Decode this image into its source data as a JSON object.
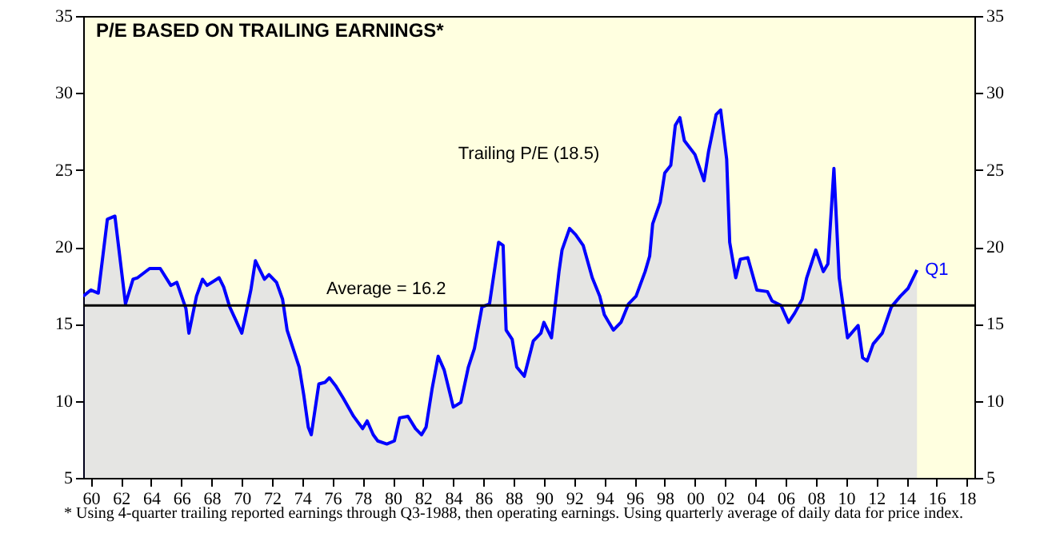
{
  "chart_data": {
    "type": "area",
    "title": "P/E BASED ON TRAILING EARNINGS*",
    "x": [
      1959.5,
      1960.0,
      1960.5,
      1961.1,
      1961.6,
      1962.3,
      1962.8,
      1963.1,
      1963.9,
      1964.6,
      1965.3,
      1965.7,
      1966.3,
      1966.5,
      1967.0,
      1967.4,
      1967.7,
      1968.5,
      1968.8,
      1969.2,
      1970.0,
      1970.6,
      1970.9,
      1971.5,
      1971.8,
      1972.3,
      1972.7,
      1973.0,
      1973.8,
      1974.1,
      1974.4,
      1974.6,
      1975.1,
      1975.5,
      1975.8,
      1976.2,
      1976.7,
      1977.4,
      1978.0,
      1978.3,
      1978.7,
      1979.0,
      1979.6,
      1980.1,
      1980.45,
      1981.0,
      1981.5,
      1981.9,
      1982.2,
      1982.6,
      1983.0,
      1983.4,
      1984.0,
      1984.5,
      1985.0,
      1985.4,
      1985.9,
      1986.4,
      1987.0,
      1987.3,
      1987.5,
      1987.9,
      1988.2,
      1988.7,
      1989.3,
      1989.8,
      1990.0,
      1990.5,
      1991.0,
      1991.2,
      1991.7,
      1992.1,
      1992.6,
      1993.2,
      1993.7,
      1994.0,
      1994.6,
      1995.1,
      1995.6,
      1996.1,
      1996.7,
      1997.0,
      1997.2,
      1997.7,
      1998.0,
      1998.4,
      1998.7,
      1999.0,
      1999.3,
      2000.0,
      2000.6,
      2000.9,
      2001.4,
      2001.7,
      2002.1,
      2002.3,
      2002.7,
      2003.0,
      2003.5,
      2004.1,
      2004.8,
      2005.1,
      2005.7,
      2006.2,
      2006.6,
      2007.1,
      2007.4,
      2008.0,
      2008.5,
      2008.8,
      2009.2,
      2009.55,
      2010.1,
      2010.8,
      2011.1,
      2011.4,
      2011.8,
      2012.4,
      2013.0,
      2013.6,
      2014.1,
      2014.7
    ],
    "series": [
      {
        "color": "#0000ff",
        "values": [
          16.8,
          17.2,
          17.0,
          21.8,
          22.0,
          16.3,
          17.9,
          18.0,
          18.6,
          18.6,
          17.5,
          17.7,
          16.0,
          14.4,
          16.8,
          17.9,
          17.5,
          18.0,
          17.4,
          16.1,
          14.4,
          17.2,
          19.1,
          17.9,
          18.2,
          17.7,
          16.6,
          14.6,
          12.2,
          10.4,
          8.3,
          7.8,
          11.1,
          11.2,
          11.5,
          11.0,
          10.2,
          9.0,
          8.2,
          8.7,
          7.8,
          7.4,
          7.2,
          7.4,
          8.9,
          9.0,
          8.2,
          7.8,
          8.3,
          10.8,
          12.9,
          12.0,
          9.6,
          9.9,
          12.2,
          13.4,
          16.1,
          16.3,
          20.3,
          20.1,
          14.6,
          14.0,
          12.2,
          11.6,
          13.9,
          14.4,
          15.1,
          14.1,
          18.4,
          19.8,
          21.2,
          20.8,
          20.1,
          18.0,
          16.8,
          15.6,
          14.6,
          15.1,
          16.3,
          16.8,
          18.4,
          19.4,
          21.5,
          22.9,
          24.8,
          25.3,
          27.9,
          28.4,
          26.9,
          26.0,
          24.3,
          26.2,
          28.6,
          28.9,
          25.7,
          20.3,
          18.0,
          19.2,
          19.3,
          17.2,
          17.1,
          16.5,
          16.2,
          15.1,
          15.7,
          16.6,
          18.0,
          19.8,
          18.4,
          18.9,
          25.1,
          18.0,
          14.1,
          14.9,
          12.8,
          12.6,
          13.7,
          14.4,
          16.1,
          16.8,
          17.3,
          18.5
        ]
      }
    ],
    "xlim": [
      1959.5,
      2018.5
    ],
    "xticks": [
      {
        "value": 1960,
        "label": "60"
      },
      {
        "value": 1962,
        "label": "62"
      },
      {
        "value": 1964,
        "label": "64"
      },
      {
        "value": 1966,
        "label": "66"
      },
      {
        "value": 1968,
        "label": "68"
      },
      {
        "value": 1970,
        "label": "70"
      },
      {
        "value": 1972,
        "label": "72"
      },
      {
        "value": 1974,
        "label": "74"
      },
      {
        "value": 1976,
        "label": "76"
      },
      {
        "value": 1978,
        "label": "78"
      },
      {
        "value": 1980,
        "label": "80"
      },
      {
        "value": 1982,
        "label": "82"
      },
      {
        "value": 1984,
        "label": "84"
      },
      {
        "value": 1986,
        "label": "86"
      },
      {
        "value": 1988,
        "label": "88"
      },
      {
        "value": 1990,
        "label": "90"
      },
      {
        "value": 1992,
        "label": "92"
      },
      {
        "value": 1994,
        "label": "94"
      },
      {
        "value": 1996,
        "label": "96"
      },
      {
        "value": 1998,
        "label": "98"
      },
      {
        "value": 2000,
        "label": "00"
      },
      {
        "value": 2002,
        "label": "02"
      },
      {
        "value": 2004,
        "label": "04"
      },
      {
        "value": 2006,
        "label": "06"
      },
      {
        "value": 2008,
        "label": "08"
      },
      {
        "value": 2010,
        "label": "10"
      },
      {
        "value": 2012,
        "label": "12"
      },
      {
        "value": 2014,
        "label": "14"
      },
      {
        "value": 2016,
        "label": "16"
      },
      {
        "value": 2018,
        "label": "18"
      }
    ],
    "ylim": [
      5,
      35
    ],
    "yticks": [
      5,
      10,
      15,
      20,
      25,
      30,
      35
    ],
    "y2lim": [
      5,
      35
    ],
    "y2ticks": [
      5,
      10,
      15,
      20,
      25,
      30,
      35
    ],
    "ref_lines": [
      {
        "axis": "y",
        "value": 16.2,
        "label": "Average = 16.2",
        "color": "#000000"
      }
    ],
    "annotations": [
      "Trailing P/E (18.5)",
      {
        "text": "Q1",
        "x": 2014.7,
        "y": 18.5
      },
      "* Using 4-quarter trailing reported earnings through Q3-1988, then operating earnings. Using quarterly average of daily data for price index."
    ],
    "grid": false
  }
}
